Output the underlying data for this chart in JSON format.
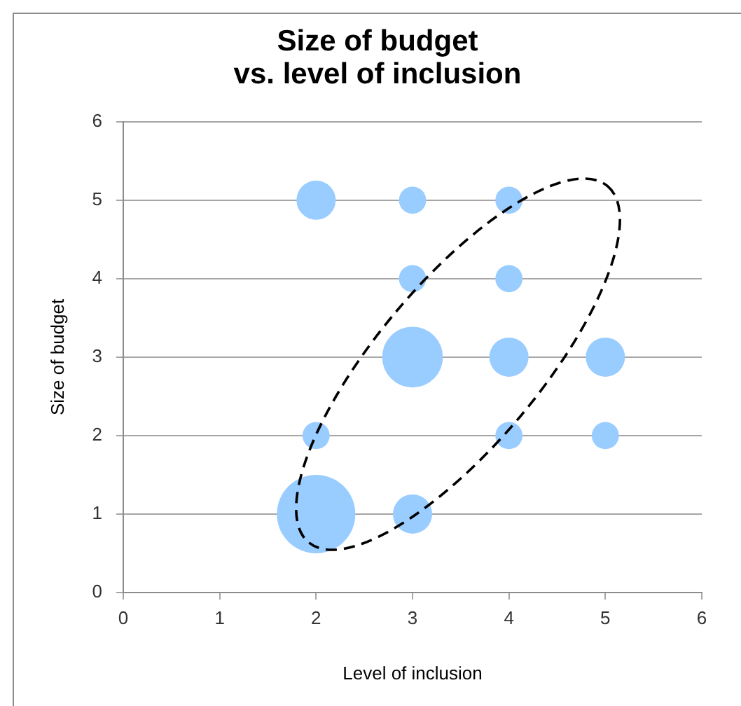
{
  "chart_data": {
    "type": "bubble",
    "title": "Size of budget\nvs. level of inclusion",
    "xlabel": "Level of inclusion",
    "ylabel": "Size of budget",
    "x": [
      2,
      3,
      4,
      3,
      4,
      3,
      4,
      5,
      2,
      4,
      5,
      2,
      3
    ],
    "values": [
      5,
      5,
      5,
      4,
      4,
      3,
      3,
      3,
      2,
      2,
      2,
      1,
      1
    ],
    "sizes": [
      0.25,
      0.12,
      0.12,
      0.12,
      0.12,
      0.6,
      0.25,
      0.25,
      0.12,
      0.12,
      0.12,
      1,
      0.25
    ],
    "color": "#99ccff",
    "xlim": [
      0,
      6
    ],
    "ylim": [
      0,
      6
    ],
    "xticks": [
      0,
      1,
      2,
      3,
      4,
      5,
      6
    ],
    "yticks": [
      0,
      1,
      2,
      3,
      4,
      5,
      6
    ],
    "grid": "y"
  }
}
